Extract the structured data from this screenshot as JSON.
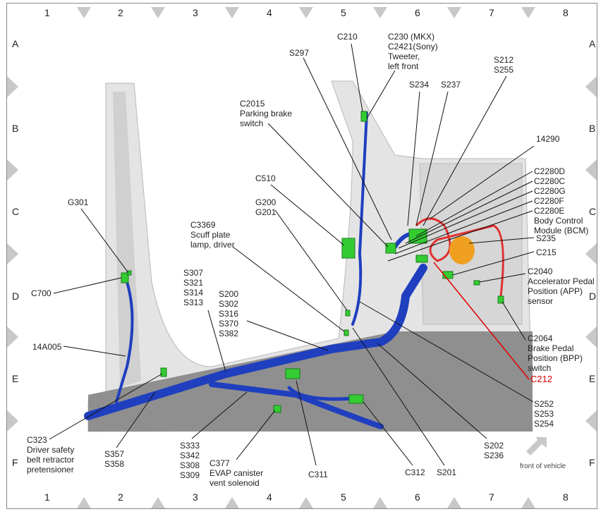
{
  "grid": {
    "columns": [
      "1",
      "2",
      "3",
      "4",
      "5",
      "6",
      "7",
      "8"
    ],
    "rows": [
      "A",
      "B",
      "C",
      "D",
      "E",
      "F"
    ]
  },
  "labels": {
    "c210": "C210",
    "c230": "C230 (MKX)\nC2421(Sony)\nTweeter,\nleft front",
    "s297": "S297",
    "s212": "S212\nS255",
    "s234": "S234",
    "s237": "S237",
    "c2015": "C2015\nParking brake\nswitch",
    "n14290": "14290",
    "bcm": "C2280D\nC2280C\nC2280G\nC2280F\nC2280E\nBody Control\nModule (BCM)",
    "c510": "C510",
    "g200": "G200\nG201",
    "g301": "G301",
    "c3369": "C3369\nScuff plate\nlamp, driver",
    "s235": "S235",
    "c215": "C215",
    "c2040": "C2040\nAccelerator Pedal\nPosition (APP)\nsensor",
    "c700": "C700",
    "s307": "S307\nS321\nS314\nS313",
    "s200": "S200\nS302\nS316\nS370\nS382",
    "n14a005": "14A005",
    "c2064": "C2064\nBrake Pedal\nPosition (BPP)\nswitch",
    "c212": "C212",
    "s252": "S252\nS253\nS254",
    "c323": "C323\nDriver safety\nbelt retractor\npretensioner",
    "s357": "S357\nS358",
    "s333": "S333\nS342\nS308\nS309",
    "c377": "C377\nEVAP canister\nvent solenoid",
    "c311": "C311",
    "c312": "C312",
    "s201": "S201",
    "s202": "S202\nS236",
    "front": "front of vehicle"
  },
  "colors": {
    "harness": "#1f3fbf",
    "connector": "#33cc33",
    "bcm_harness": "#e03030",
    "highlight": "#e00000"
  }
}
